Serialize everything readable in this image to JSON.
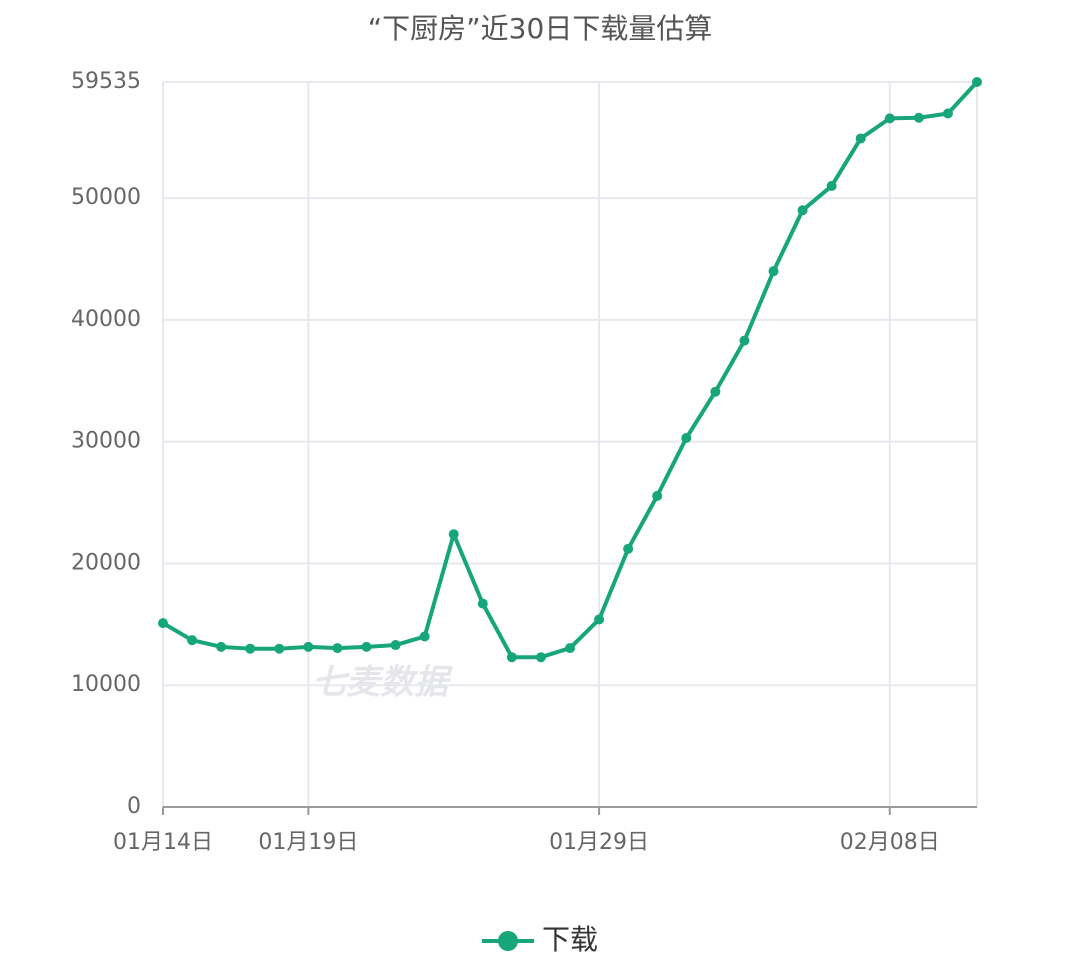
{
  "chart_data": {
    "type": "line",
    "title": "“下厨房”近30日下载量估算",
    "watermark": "七麦数据",
    "categories": [
      "01月14日",
      null,
      null,
      null,
      null,
      "01月19日",
      null,
      null,
      null,
      null,
      null,
      null,
      null,
      null,
      null,
      "01月29日",
      null,
      null,
      null,
      null,
      null,
      null,
      null,
      null,
      null,
      "02月08日",
      null,
      null,
      null
    ],
    "series": [
      {
        "name": "下载",
        "color": "#17a57a",
        "values": [
          15100,
          13700,
          13150,
          13000,
          13000,
          13150,
          13050,
          13150,
          13300,
          14000,
          22400,
          16700,
          12300,
          12300,
          13050,
          15400,
          21200,
          25550,
          30300,
          34100,
          38300,
          44000,
          49000,
          51000,
          54900,
          56550,
          56600,
          56950,
          59535
        ]
      }
    ],
    "ylim": [
      0,
      59535
    ],
    "yticks": [
      0,
      10000,
      20000,
      30000,
      40000,
      50000,
      59535
    ],
    "grid": true,
    "legend": "bottom"
  }
}
